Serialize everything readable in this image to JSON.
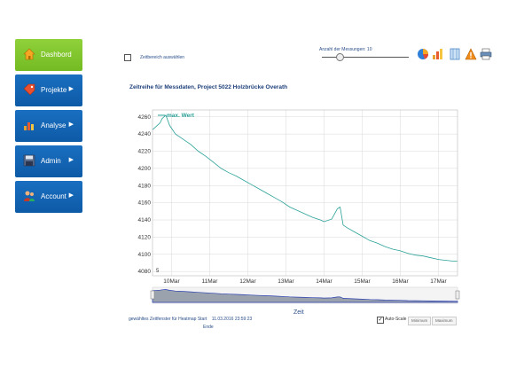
{
  "sidebar": {
    "items": [
      {
        "label": "Dashbord",
        "icon": "home-icon",
        "active": true
      },
      {
        "label": "Projekte",
        "icon": "tag-icon",
        "active": false
      },
      {
        "label": "Analyse",
        "icon": "bar-chart-icon",
        "active": false
      },
      {
        "label": "Admin",
        "icon": "floppy-disk-icon",
        "active": false
      },
      {
        "label": "Account",
        "icon": "users-icon",
        "active": false
      }
    ]
  },
  "toolbar": {
    "time_range_label": "Zeitbereich auswählen",
    "measurements_label": "Anzahl der Messungen: 10",
    "measurements_value": 10,
    "icons": [
      "pie-chart-icon",
      "bar-chart-icon",
      "grid-icon",
      "warning-icon",
      "printer-icon"
    ]
  },
  "chart": {
    "title": "Zeitreihe für Messdaten, Project 5022 Holzbrücke Overath",
    "legend": "max. Wert",
    "x_axis_label": "Zeit",
    "corner_label": "5"
  },
  "chart_data": {
    "type": "line",
    "title": "Zeitreihe für Messdaten, Project 5022 Holzbrücke Overath",
    "xlabel": "Zeit",
    "ylabel": "",
    "ylim": [
      4075,
      4268
    ],
    "xlim": [
      9.5,
      17.5
    ],
    "x_ticks": [
      "10Mar",
      "11Mar",
      "12Mar",
      "13Mar",
      "14Mar",
      "15Mar",
      "16Mar",
      "17Mar"
    ],
    "y_ticks": [
      4080,
      4100,
      4120,
      4140,
      4160,
      4180,
      4200,
      4220,
      4240,
      4260
    ],
    "series": [
      {
        "name": "max. Wert",
        "color": "#2aa198",
        "x": [
          9.5,
          9.7,
          9.75,
          9.85,
          9.95,
          10.1,
          10.3,
          10.5,
          10.7,
          10.9,
          11.1,
          11.3,
          11.5,
          11.7,
          11.9,
          12.1,
          12.3,
          12.5,
          12.7,
          12.9,
          13.1,
          13.3,
          13.5,
          13.7,
          13.9,
          14.0,
          14.2,
          14.35,
          14.42,
          14.5,
          14.6,
          14.8,
          15.0,
          15.2,
          15.4,
          15.6,
          15.8,
          16.0,
          16.2,
          16.4,
          16.6,
          16.8,
          17.0,
          17.2,
          17.4,
          17.5
        ],
        "values": [
          4245,
          4253,
          4258,
          4262,
          4250,
          4240,
          4234,
          4228,
          4220,
          4214,
          4207,
          4200,
          4195,
          4191,
          4186,
          4181,
          4176,
          4171,
          4166,
          4161,
          4155,
          4151,
          4147,
          4143,
          4140,
          4138,
          4141,
          4153,
          4155,
          4134,
          4131,
          4126,
          4121,
          4116,
          4113,
          4109,
          4106,
          4104,
          4101,
          4099,
          4098,
          4096,
          4094,
          4093,
          4092,
          4092
        ]
      }
    ],
    "grid": true,
    "legend_position": "top-left"
  },
  "footer": {
    "heatmap_label": "gewähltes Zeitfenster für Heatmap",
    "start_label": "Start",
    "start_value": "11.03.2016 23:59:23",
    "end_label": "Ende",
    "auto_scale_label": "Auto-Scale",
    "auto_scale_checked": true,
    "minimum_label": "Minimum",
    "maximum_label": "Maximum"
  },
  "colors": {
    "sidebar_blue": "#0d5aa7",
    "sidebar_active": "#7cc12a",
    "title": "#1d3f7a",
    "series": "#2aa198"
  }
}
